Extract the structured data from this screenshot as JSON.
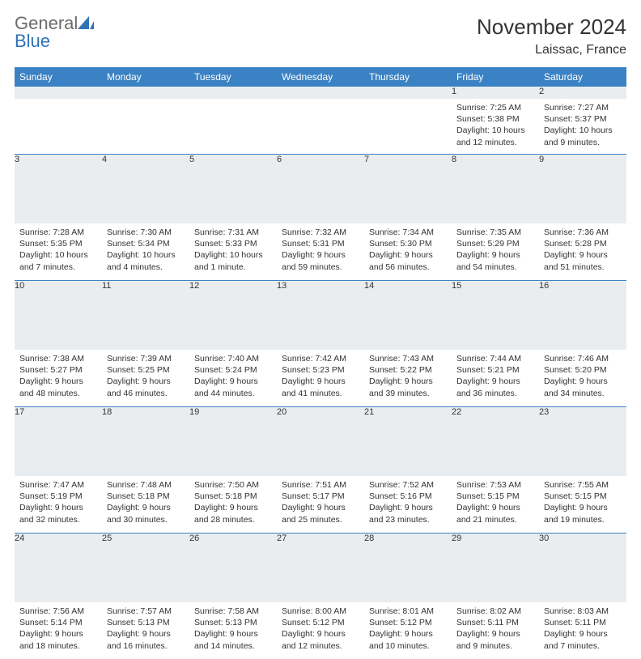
{
  "brand": {
    "part1": "General",
    "part2": "Blue"
  },
  "title": "November 2024",
  "location": "Laissac, France",
  "colors": {
    "header_bg": "#3b82c4",
    "header_text": "#ffffff",
    "daynum_bg": "#e9edef",
    "border": "#3b82c4",
    "body_text": "#333333",
    "logo_gray": "#6b6b6b",
    "logo_blue": "#2f73b6",
    "page_bg": "#ffffff"
  },
  "weekdays": [
    "Sunday",
    "Monday",
    "Tuesday",
    "Wednesday",
    "Thursday",
    "Friday",
    "Saturday"
  ],
  "cell_fontsize_pt": 8,
  "weeks": [
    [
      null,
      null,
      null,
      null,
      null,
      {
        "num": "1",
        "sunrise": "Sunrise: 7:25 AM",
        "sunset": "Sunset: 5:38 PM",
        "daylight": "Daylight: 10 hours and 12 minutes."
      },
      {
        "num": "2",
        "sunrise": "Sunrise: 7:27 AM",
        "sunset": "Sunset: 5:37 PM",
        "daylight": "Daylight: 10 hours and 9 minutes."
      }
    ],
    [
      {
        "num": "3",
        "sunrise": "Sunrise: 7:28 AM",
        "sunset": "Sunset: 5:35 PM",
        "daylight": "Daylight: 10 hours and 7 minutes."
      },
      {
        "num": "4",
        "sunrise": "Sunrise: 7:30 AM",
        "sunset": "Sunset: 5:34 PM",
        "daylight": "Daylight: 10 hours and 4 minutes."
      },
      {
        "num": "5",
        "sunrise": "Sunrise: 7:31 AM",
        "sunset": "Sunset: 5:33 PM",
        "daylight": "Daylight: 10 hours and 1 minute."
      },
      {
        "num": "6",
        "sunrise": "Sunrise: 7:32 AM",
        "sunset": "Sunset: 5:31 PM",
        "daylight": "Daylight: 9 hours and 59 minutes."
      },
      {
        "num": "7",
        "sunrise": "Sunrise: 7:34 AM",
        "sunset": "Sunset: 5:30 PM",
        "daylight": "Daylight: 9 hours and 56 minutes."
      },
      {
        "num": "8",
        "sunrise": "Sunrise: 7:35 AM",
        "sunset": "Sunset: 5:29 PM",
        "daylight": "Daylight: 9 hours and 54 minutes."
      },
      {
        "num": "9",
        "sunrise": "Sunrise: 7:36 AM",
        "sunset": "Sunset: 5:28 PM",
        "daylight": "Daylight: 9 hours and 51 minutes."
      }
    ],
    [
      {
        "num": "10",
        "sunrise": "Sunrise: 7:38 AM",
        "sunset": "Sunset: 5:27 PM",
        "daylight": "Daylight: 9 hours and 48 minutes."
      },
      {
        "num": "11",
        "sunrise": "Sunrise: 7:39 AM",
        "sunset": "Sunset: 5:25 PM",
        "daylight": "Daylight: 9 hours and 46 minutes."
      },
      {
        "num": "12",
        "sunrise": "Sunrise: 7:40 AM",
        "sunset": "Sunset: 5:24 PM",
        "daylight": "Daylight: 9 hours and 44 minutes."
      },
      {
        "num": "13",
        "sunrise": "Sunrise: 7:42 AM",
        "sunset": "Sunset: 5:23 PM",
        "daylight": "Daylight: 9 hours and 41 minutes."
      },
      {
        "num": "14",
        "sunrise": "Sunrise: 7:43 AM",
        "sunset": "Sunset: 5:22 PM",
        "daylight": "Daylight: 9 hours and 39 minutes."
      },
      {
        "num": "15",
        "sunrise": "Sunrise: 7:44 AM",
        "sunset": "Sunset: 5:21 PM",
        "daylight": "Daylight: 9 hours and 36 minutes."
      },
      {
        "num": "16",
        "sunrise": "Sunrise: 7:46 AM",
        "sunset": "Sunset: 5:20 PM",
        "daylight": "Daylight: 9 hours and 34 minutes."
      }
    ],
    [
      {
        "num": "17",
        "sunrise": "Sunrise: 7:47 AM",
        "sunset": "Sunset: 5:19 PM",
        "daylight": "Daylight: 9 hours and 32 minutes."
      },
      {
        "num": "18",
        "sunrise": "Sunrise: 7:48 AM",
        "sunset": "Sunset: 5:18 PM",
        "daylight": "Daylight: 9 hours and 30 minutes."
      },
      {
        "num": "19",
        "sunrise": "Sunrise: 7:50 AM",
        "sunset": "Sunset: 5:18 PM",
        "daylight": "Daylight: 9 hours and 28 minutes."
      },
      {
        "num": "20",
        "sunrise": "Sunrise: 7:51 AM",
        "sunset": "Sunset: 5:17 PM",
        "daylight": "Daylight: 9 hours and 25 minutes."
      },
      {
        "num": "21",
        "sunrise": "Sunrise: 7:52 AM",
        "sunset": "Sunset: 5:16 PM",
        "daylight": "Daylight: 9 hours and 23 minutes."
      },
      {
        "num": "22",
        "sunrise": "Sunrise: 7:53 AM",
        "sunset": "Sunset: 5:15 PM",
        "daylight": "Daylight: 9 hours and 21 minutes."
      },
      {
        "num": "23",
        "sunrise": "Sunrise: 7:55 AM",
        "sunset": "Sunset: 5:15 PM",
        "daylight": "Daylight: 9 hours and 19 minutes."
      }
    ],
    [
      {
        "num": "24",
        "sunrise": "Sunrise: 7:56 AM",
        "sunset": "Sunset: 5:14 PM",
        "daylight": "Daylight: 9 hours and 18 minutes."
      },
      {
        "num": "25",
        "sunrise": "Sunrise: 7:57 AM",
        "sunset": "Sunset: 5:13 PM",
        "daylight": "Daylight: 9 hours and 16 minutes."
      },
      {
        "num": "26",
        "sunrise": "Sunrise: 7:58 AM",
        "sunset": "Sunset: 5:13 PM",
        "daylight": "Daylight: 9 hours and 14 minutes."
      },
      {
        "num": "27",
        "sunrise": "Sunrise: 8:00 AM",
        "sunset": "Sunset: 5:12 PM",
        "daylight": "Daylight: 9 hours and 12 minutes."
      },
      {
        "num": "28",
        "sunrise": "Sunrise: 8:01 AM",
        "sunset": "Sunset: 5:12 PM",
        "daylight": "Daylight: 9 hours and 10 minutes."
      },
      {
        "num": "29",
        "sunrise": "Sunrise: 8:02 AM",
        "sunset": "Sunset: 5:11 PM",
        "daylight": "Daylight: 9 hours and 9 minutes."
      },
      {
        "num": "30",
        "sunrise": "Sunrise: 8:03 AM",
        "sunset": "Sunset: 5:11 PM",
        "daylight": "Daylight: 9 hours and 7 minutes."
      }
    ]
  ]
}
